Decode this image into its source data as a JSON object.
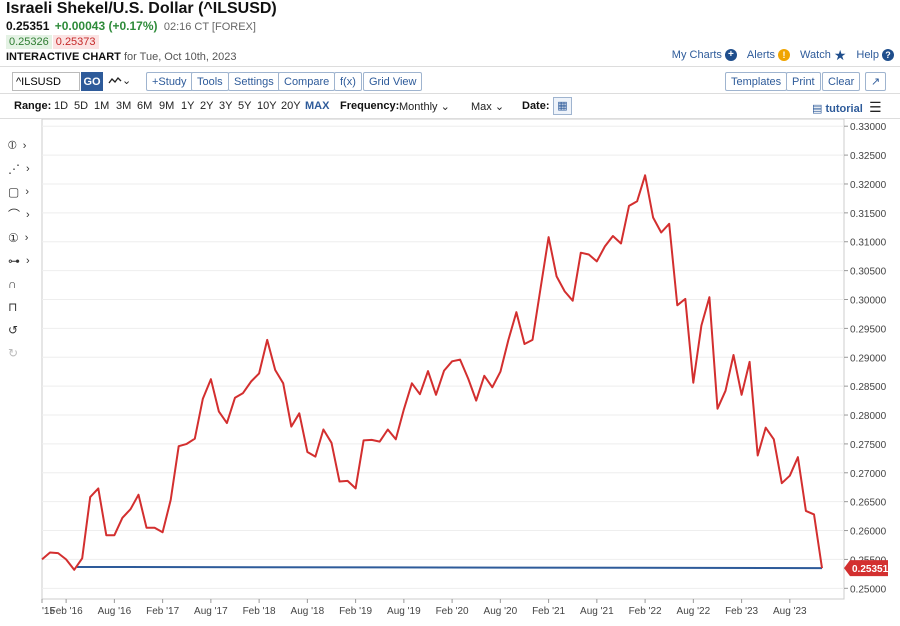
{
  "header": {
    "title": "Israeli Shekel/U.S. Dollar (^ILSUSD)",
    "last": "0.25351",
    "change": "+0.00043 (+0.17%)",
    "time": "02:16 CT [FOREX]",
    "bid": "0.25326",
    "ask": "0.25373",
    "interactive_label": "INTERACTIVE CHART",
    "interactive_date": "for Tue, Oct 10th, 2023"
  },
  "toplinks": {
    "my_charts": "My Charts",
    "alerts": "Alerts",
    "watch": "Watch",
    "help": "Help"
  },
  "toolbar": {
    "symbol_value": "^ILSUSD",
    "go": "GO",
    "study": "+Study",
    "tools": "Tools",
    "settings": "Settings",
    "compare": "Compare",
    "fx": "f(x)",
    "grid_view": "Grid View",
    "templates": "Templates",
    "print": "Print",
    "clear": "Clear",
    "expand": "↗"
  },
  "rangebar": {
    "range_label": "Range:",
    "ranges": [
      "1D",
      "5D",
      "1M",
      "3M",
      "6M",
      "9M",
      "1Y",
      "2Y",
      "3Y",
      "5Y",
      "10Y",
      "20Y",
      "MAX"
    ],
    "frequency_label": "Frequency:",
    "frequency_value": "Monthly",
    "period_value": "Max",
    "date_label": "Date:",
    "tutorial": "tutorial"
  },
  "chart_data": {
    "type": "line",
    "x_tick_labels": [
      "'15",
      "Feb '16",
      "Aug '16",
      "Feb '17",
      "Aug '17",
      "Feb '18",
      "Aug '18",
      "Feb '19",
      "Aug '19",
      "Feb '20",
      "Aug '20",
      "Feb '21",
      "Aug '21",
      "Feb '22",
      "Aug '22",
      "Feb '23",
      "Aug '23"
    ],
    "y_tick_labels": [
      "0.33000",
      "0.32500",
      "0.32000",
      "0.31500",
      "0.31000",
      "0.30500",
      "0.30000",
      "0.29500",
      "0.29000",
      "0.28500",
      "0.28000",
      "0.27500",
      "0.27000",
      "0.26500",
      "0.26000",
      "0.25500",
      "0.25000"
    ],
    "ylim": [
      0.24815,
      0.33125
    ],
    "x_start": "2015-11",
    "series": [
      {
        "color": "#d32f2f",
        "values": [
          0.255,
          0.2562,
          0.2561,
          0.255,
          0.2532,
          0.2552,
          0.2658,
          0.2673,
          0.2592,
          0.2592,
          0.2622,
          0.2637,
          0.2662,
          0.2605,
          0.2605,
          0.2597,
          0.2653,
          0.2746,
          0.275,
          0.2759,
          0.2828,
          0.2862,
          0.2806,
          0.2786,
          0.283,
          0.2838,
          0.2858,
          0.2872,
          0.293,
          0.2878,
          0.2855,
          0.278,
          0.2803,
          0.2736,
          0.2728,
          0.2775,
          0.2752,
          0.2685,
          0.2686,
          0.2673,
          0.2756,
          0.2757,
          0.2754,
          0.2775,
          0.2758,
          0.281,
          0.2855,
          0.2836,
          0.2876,
          0.2835,
          0.2877,
          0.2893,
          0.2896,
          0.2863,
          0.2825,
          0.2868,
          0.2848,
          0.2875,
          0.293,
          0.2978,
          0.2923,
          0.293,
          0.302,
          0.3108,
          0.304,
          0.3014,
          0.2998,
          0.3081,
          0.3078,
          0.3066,
          0.3092,
          0.311,
          0.3097,
          0.3162,
          0.317,
          0.3215,
          0.3142,
          0.3116,
          0.3131,
          0.299,
          0.3001,
          0.2856,
          0.2955,
          0.3004,
          0.2811,
          0.2842,
          0.2904,
          0.2835,
          0.2892,
          0.273,
          0.2778,
          0.2758,
          0.2682,
          0.2695,
          0.2727,
          0.2634,
          0.2628,
          0.2535
        ]
      },
      {
        "color": "#2e5b9a",
        "values": [
          0.2537,
          0.2535
        ]
      }
    ],
    "current_value_label": "0.25351"
  }
}
